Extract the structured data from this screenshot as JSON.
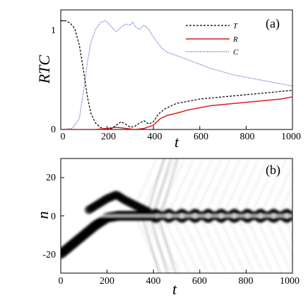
{
  "chart_data": [
    {
      "type": "line",
      "panel_label": "(a)",
      "xlabel": "t",
      "ylabel": "RTC",
      "xlim": [
        0,
        1000
      ],
      "ylim": [
        0,
        1.1
      ],
      "x_ticks": [
        "0",
        "200",
        "400",
        "600",
        "800",
        "1000"
      ],
      "y_ticks": [
        "0",
        "1"
      ],
      "legend_position": "top-right",
      "series": [
        {
          "name": "T",
          "color": "#000000",
          "style": "dashed",
          "points": [
            [
              0,
              1.0
            ],
            [
              20,
              1.0
            ],
            [
              40,
              0.98
            ],
            [
              60,
              0.93
            ],
            [
              80,
              0.78
            ],
            [
              100,
              0.52
            ],
            [
              115,
              0.3
            ],
            [
              130,
              0.15
            ],
            [
              150,
              0.06
            ],
            [
              170,
              0.02
            ],
            [
              200,
              0.0
            ],
            [
              220,
              0.01
            ],
            [
              240,
              0.04
            ],
            [
              260,
              0.07
            ],
            [
              280,
              0.05
            ],
            [
              300,
              0.02
            ],
            [
              320,
              0.03
            ],
            [
              340,
              0.06
            ],
            [
              360,
              0.08
            ],
            [
              380,
              0.05
            ],
            [
              400,
              0.07
            ],
            [
              420,
              0.14
            ],
            [
              450,
              0.19
            ],
            [
              500,
              0.24
            ],
            [
              550,
              0.26
            ],
            [
              600,
              0.28
            ],
            [
              650,
              0.29
            ],
            [
              700,
              0.3
            ],
            [
              750,
              0.31
            ],
            [
              800,
              0.32
            ],
            [
              850,
              0.33
            ],
            [
              900,
              0.34
            ],
            [
              950,
              0.35
            ],
            [
              1000,
              0.36
            ]
          ]
        },
        {
          "name": "R",
          "color": "#d61f1f",
          "style": "solid",
          "points": [
            [
              0,
              0.0
            ],
            [
              100,
              0.0
            ],
            [
              150,
              0.0
            ],
            [
              200,
              0.01
            ],
            [
              240,
              0.02
            ],
            [
              280,
              0.01
            ],
            [
              320,
              0.0
            ],
            [
              360,
              0.01
            ],
            [
              400,
              0.04
            ],
            [
              430,
              0.1
            ],
            [
              460,
              0.13
            ],
            [
              500,
              0.15
            ],
            [
              550,
              0.18
            ],
            [
              600,
              0.2
            ],
            [
              650,
              0.22
            ],
            [
              700,
              0.23
            ],
            [
              750,
              0.24
            ],
            [
              800,
              0.25
            ],
            [
              850,
              0.26
            ],
            [
              900,
              0.27
            ],
            [
              950,
              0.28
            ],
            [
              1000,
              0.3
            ]
          ]
        },
        {
          "name": "C",
          "color": "#2f4fc9",
          "style": "dotted",
          "points": [
            [
              0,
              0.0
            ],
            [
              50,
              0.01
            ],
            [
              80,
              0.1
            ],
            [
              100,
              0.38
            ],
            [
              115,
              0.62
            ],
            [
              130,
              0.8
            ],
            [
              150,
              0.92
            ],
            [
              170,
              0.98
            ],
            [
              190,
              1.0
            ],
            [
              200,
              0.99
            ],
            [
              220,
              0.94
            ],
            [
              240,
              0.9
            ],
            [
              260,
              0.94
            ],
            [
              280,
              0.97
            ],
            [
              300,
              0.96
            ],
            [
              310,
              0.99
            ],
            [
              320,
              0.95
            ],
            [
              340,
              0.92
            ],
            [
              360,
              0.96
            ],
            [
              380,
              0.92
            ],
            [
              400,
              0.85
            ],
            [
              420,
              0.79
            ],
            [
              440,
              0.74
            ],
            [
              460,
              0.71
            ],
            [
              500,
              0.68
            ],
            [
              550,
              0.64
            ],
            [
              600,
              0.6
            ],
            [
              650,
              0.56
            ],
            [
              700,
              0.53
            ],
            [
              750,
              0.5
            ],
            [
              800,
              0.48
            ],
            [
              850,
              0.46
            ],
            [
              900,
              0.44
            ],
            [
              950,
              0.42
            ],
            [
              1000,
              0.4
            ]
          ]
        }
      ]
    },
    {
      "type": "heatmap",
      "panel_label": "(b)",
      "xlabel": "t",
      "ylabel": "n",
      "xlim": [
        0,
        1000
      ],
      "ylim": [
        -30,
        30
      ],
      "x_ticks": [
        "0",
        "200",
        "400",
        "600",
        "800",
        "1000"
      ],
      "y_ticks": [
        "-20",
        "0",
        "20"
      ],
      "colormap": [
        "#ffffff",
        "#000000"
      ],
      "main_band": [
        [
          0,
          -20
        ],
        [
          50,
          -15
        ],
        [
          100,
          -10
        ],
        [
          150,
          -5
        ],
        [
          200,
          -1
        ],
        [
          250,
          0
        ],
        [
          300,
          0
        ],
        [
          1000,
          0
        ]
      ],
      "upper_lobe": [
        [
          120,
          3
        ],
        [
          200,
          9
        ],
        [
          240,
          11
        ],
        [
          280,
          8
        ],
        [
          330,
          5
        ],
        [
          380,
          2
        ]
      ],
      "split_after": 400
    }
  ]
}
